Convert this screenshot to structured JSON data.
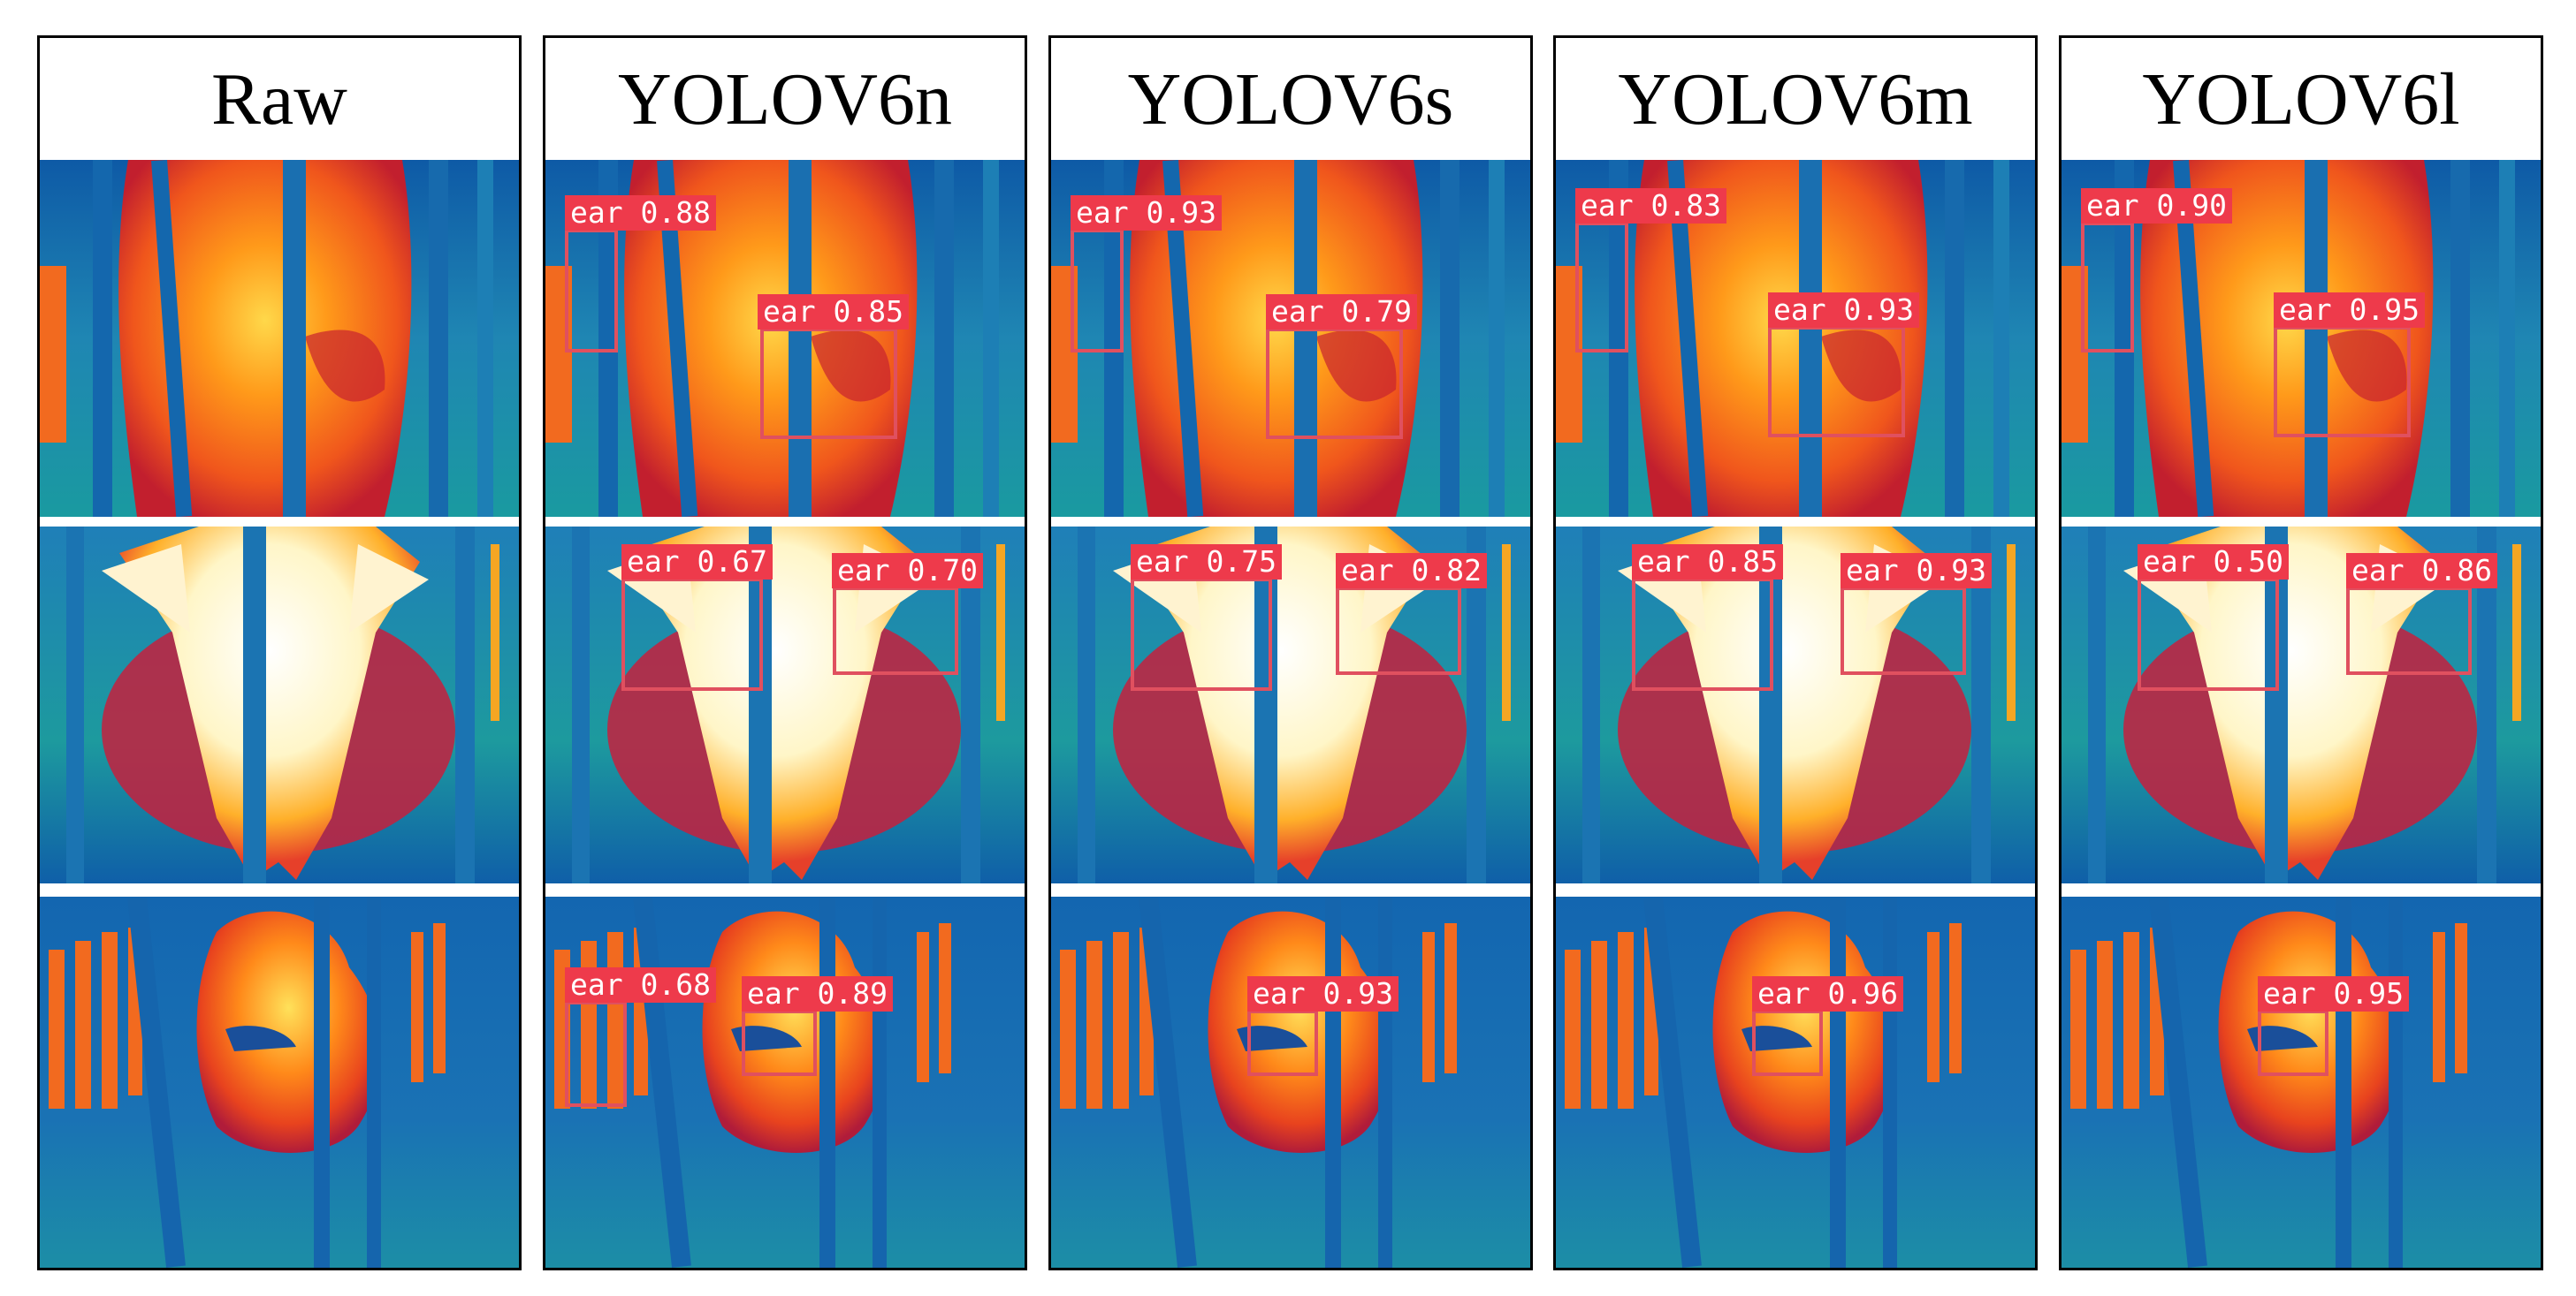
{
  "columns": [
    {
      "title": "Raw",
      "rows": [
        [],
        [],
        []
      ]
    },
    {
      "title": "YOLOV6n",
      "rows": [
        [
          {
            "label": "ear",
            "score": "0.88"
          },
          {
            "label": "ear",
            "score": "0.85"
          }
        ],
        [
          {
            "label": "ear",
            "score": "0.67"
          },
          {
            "label": "ear",
            "score": "0.70"
          }
        ],
        [
          {
            "label": "ear",
            "score": "0.68"
          },
          {
            "label": "ear",
            "score": "0.89"
          }
        ]
      ]
    },
    {
      "title": "YOLOV6s",
      "rows": [
        [
          {
            "label": "ear",
            "score": "0.93"
          },
          {
            "label": "ear",
            "score": "0.79"
          }
        ],
        [
          {
            "label": "ear",
            "score": "0.75"
          },
          {
            "label": "ear",
            "score": "0.82"
          }
        ],
        [
          {
            "label": "ear",
            "score": "0.93"
          }
        ]
      ]
    },
    {
      "title": "YOLOV6m",
      "rows": [
        [
          {
            "label": "ear",
            "score": "0.83"
          },
          {
            "label": "ear",
            "score": "0.93"
          }
        ],
        [
          {
            "label": "ear",
            "score": "0.85"
          },
          {
            "label": "ear",
            "score": "0.93"
          }
        ],
        [
          {
            "label": "ear",
            "score": "0.96"
          }
        ]
      ]
    },
    {
      "title": "YOLOV6l",
      "rows": [
        [
          {
            "label": "ear",
            "score": "0.90"
          },
          {
            "label": "ear",
            "score": "0.95"
          }
        ],
        [
          {
            "label": "ear",
            "score": "0.50"
          },
          {
            "label": "ear",
            "score": "0.86"
          }
        ],
        [
          {
            "label": "ear",
            "score": "0.95"
          }
        ]
      ]
    }
  ],
  "colors": {
    "box": "#e0505f",
    "label_bg": "#ee3a4b",
    "label_text": "#ffffff"
  }
}
